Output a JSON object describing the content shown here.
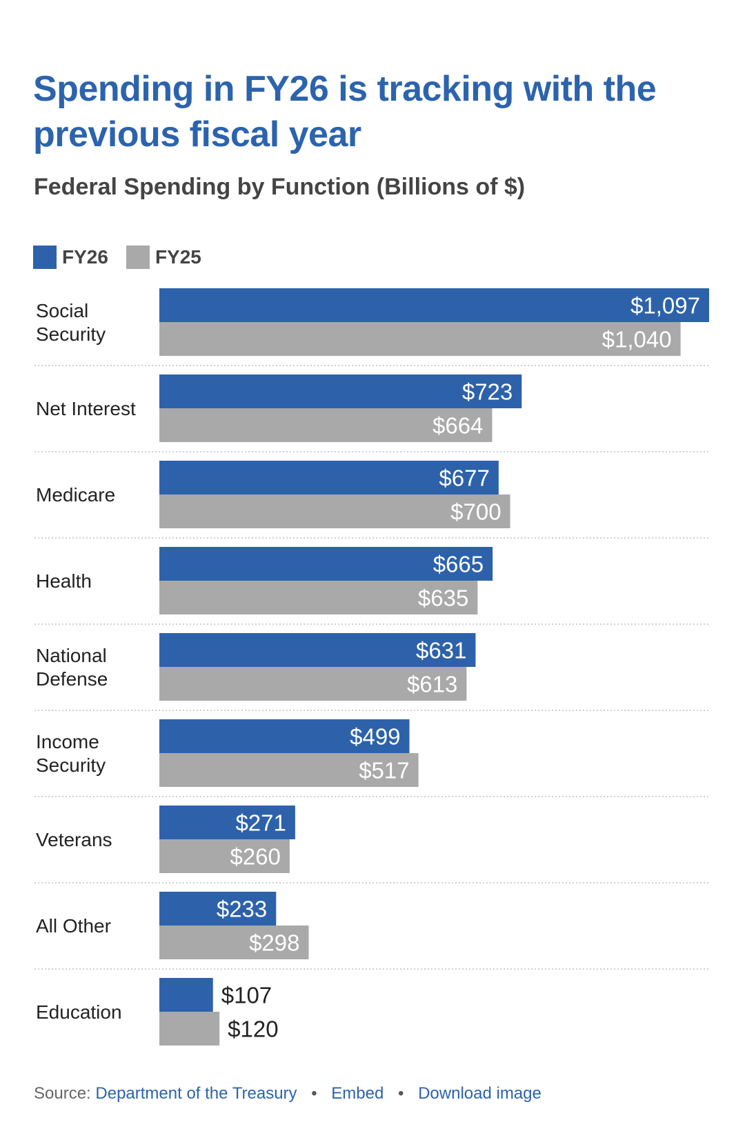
{
  "title": "Spending in FY26 is tracking with the previous fiscal year",
  "subtitle": "Federal Spending by Function (Billions of $)",
  "colors": {
    "fy26": "#2d62ab",
    "fy25": "#a9a9a9",
    "title": "#2c63ad",
    "link": "#2c63ad"
  },
  "chart_data": {
    "type": "bar",
    "orientation": "horizontal",
    "title": "Spending in FY26 is tracking with the previous fiscal year",
    "subtitle": "Federal Spending by Function (Billions of $)",
    "legend": "top-left",
    "grid": false,
    "xlim": [
      0,
      1097
    ],
    "categories": [
      [
        "Social",
        "Security"
      ],
      [
        "Net Interest"
      ],
      [
        "Medicare"
      ],
      [
        "Health"
      ],
      [
        "National",
        "Defense"
      ],
      [
        "Income",
        "Security"
      ],
      [
        "Veterans"
      ],
      [
        "All Other"
      ],
      [
        "Education"
      ]
    ],
    "series": [
      {
        "name": "FY26",
        "values": [
          1097,
          723,
          677,
          665,
          631,
          499,
          271,
          233,
          107
        ],
        "labels": [
          "$1,097",
          "$723",
          "$677",
          "$665",
          "$631",
          "$499",
          "$271",
          "$233",
          "$107"
        ]
      },
      {
        "name": "FY25",
        "values": [
          1040,
          664,
          700,
          635,
          613,
          517,
          260,
          298,
          120
        ],
        "labels": [
          "$1,040",
          "$664",
          "$700",
          "$635",
          "$613",
          "$517",
          "$260",
          "$298",
          "$120"
        ]
      }
    ]
  },
  "footer": {
    "source_prefix": "Source:",
    "source_link": "Department of the Treasury",
    "separator": "•",
    "embed": "Embed",
    "download": "Download image"
  }
}
